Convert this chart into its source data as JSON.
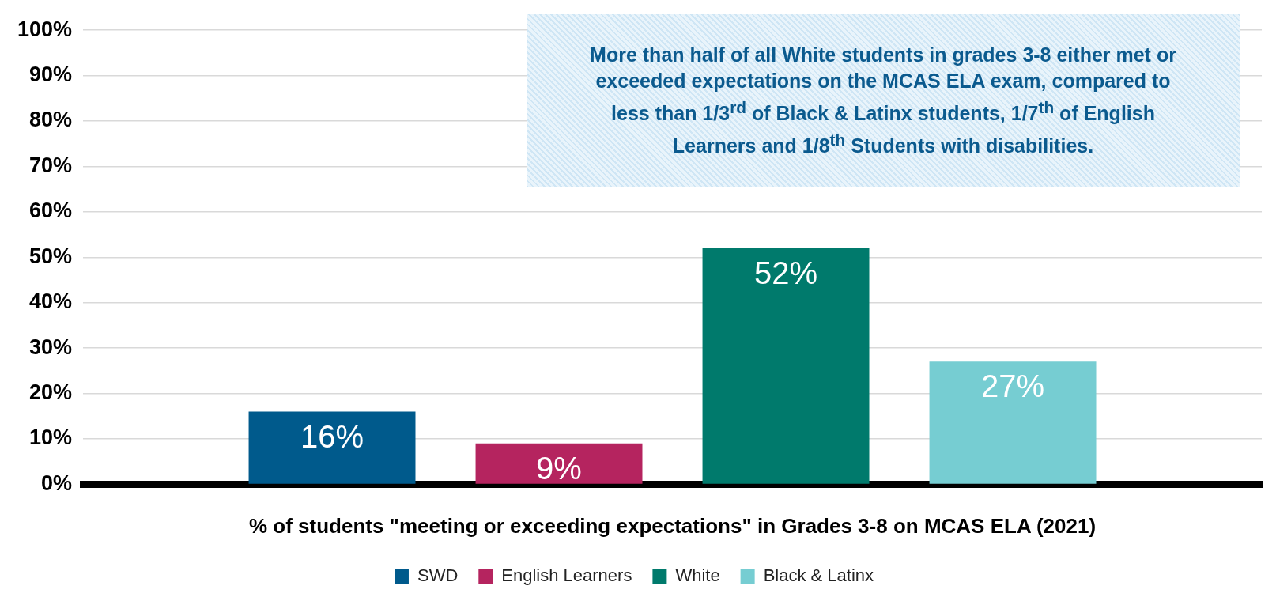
{
  "chart_data": {
    "type": "bar",
    "categories": [
      null
    ],
    "series": [
      {
        "name": "SWD",
        "color": "#005a8c",
        "values": [
          16
        ],
        "value_labels": [
          "16%"
        ]
      },
      {
        "name": "English Learners",
        "color": "#b5245f",
        "values": [
          9
        ],
        "value_labels": [
          "9%"
        ]
      },
      {
        "name": "White",
        "color": "#007a6c",
        "values": [
          52
        ],
        "value_labels": [
          "52%"
        ]
      },
      {
        "name": "Black & Latinx",
        "color": "#76cdd2",
        "values": [
          27
        ],
        "value_labels": [
          "27%"
        ]
      }
    ],
    "xlabel": "% of students \"meeting or exceeding expectations\" in Grades 3-8 on MCAS ELA (2021)",
    "ylim": [
      0,
      100
    ],
    "yticks": [
      {
        "value": 0,
        "label": "0%"
      },
      {
        "value": 10,
        "label": "10%"
      },
      {
        "value": 20,
        "label": "20%"
      },
      {
        "value": 30,
        "label": "30%"
      },
      {
        "value": 40,
        "label": "40%"
      },
      {
        "value": 50,
        "label": "50%"
      },
      {
        "value": 60,
        "label": "60%"
      },
      {
        "value": 70,
        "label": "70%"
      },
      {
        "value": 80,
        "label": "80%"
      },
      {
        "value": 90,
        "label": "90%"
      },
      {
        "value": 100,
        "label": "100%"
      }
    ],
    "grid": "y",
    "legend": "bottom",
    "annotations": [
      "More than half of all White students in grades 3-8 either met or exceeded expectations on the MCAS ELA exam, compared to less than 1/3$^{rd}$  of Black & Latinx students, 1/7$^{th}$  of English Learners and 1/8$^{th}$ Students with disabilities."
    ]
  }
}
